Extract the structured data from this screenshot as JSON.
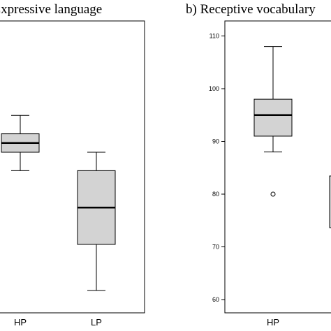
{
  "chart_data": [
    {
      "type": "box",
      "title": "a) Expressive language",
      "categories": [
        "HP",
        "LP"
      ],
      "series": [
        {
          "category": "HP",
          "min": 88,
          "q1": 92,
          "median": 94,
          "q3": 96,
          "max": 100,
          "outliers": []
        },
        {
          "category": "LP",
          "min": 62,
          "q1": 72,
          "median": 80,
          "q3": 88,
          "max": 92,
          "outliers": []
        }
      ],
      "ylim": [
        57,
        107
      ],
      "grid": false
    },
    {
      "type": "box",
      "title": "b) Receptive vocabulary",
      "categories": [
        "HP"
      ],
      "series": [
        {
          "category": "HP",
          "min": 88,
          "q1": 91,
          "median": 95,
          "q3": 98,
          "max": 108,
          "outliers": [
            80
          ]
        }
      ],
      "ylim": [
        58,
        112
      ],
      "yticks": [
        60,
        70,
        80,
        90,
        100,
        110
      ],
      "grid": false
    }
  ]
}
